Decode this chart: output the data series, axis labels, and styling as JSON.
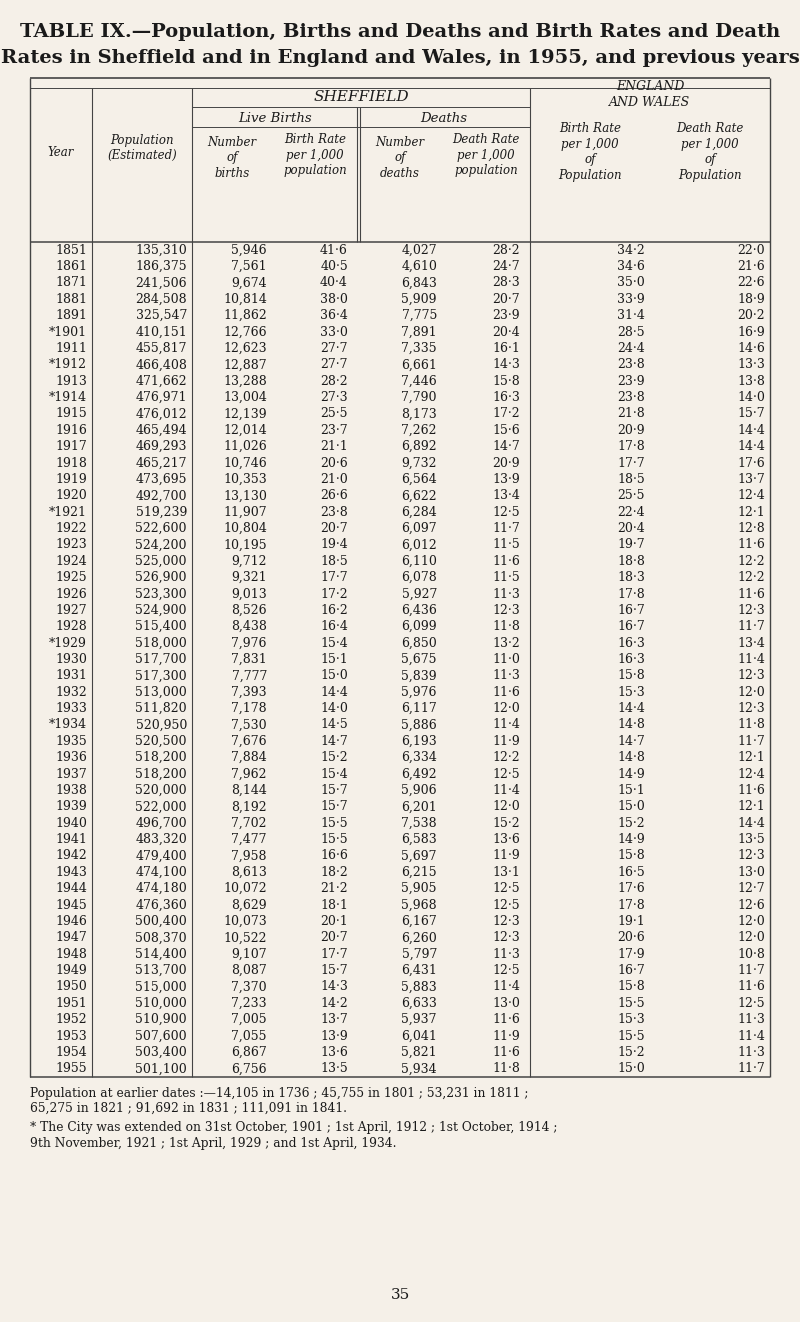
{
  "title_line1": "TABLE IX.—Population, Births and Deaths and Birth Rates and Death",
  "title_line2": "Rates in Sheffield and in England and Wales, in 1955, and previous years",
  "col_headers": {
    "sheffield_label": "SHEFFIELD",
    "ew_label": "ENGLAND\nAND WALES",
    "live_births": "Live Births",
    "deaths": "Deaths",
    "year": "Year",
    "population": "Population\n(Estimated)",
    "lb_number": "Number\nof\nbirths",
    "lb_rate": "Birth Rate\nper 1,000\npopulation",
    "d_number": "Number\nof\ndeaths",
    "d_rate": "Death Rate\nper 1,000\npopulation",
    "ew_birth_rate": "Birth Rate\nper 1,000\nof\nPopulation",
    "ew_death_rate": "Death Rate\nper 1,000\nof\nPopulation"
  },
  "rows": [
    [
      "1851",
      "135,310",
      "5,946",
      "41·6",
      "4,027",
      "28·2",
      "34·2",
      "22·0"
    ],
    [
      "1861",
      "186,375",
      "7,561",
      "40·5",
      "4,610",
      "24·7",
      "34·6",
      "21·6"
    ],
    [
      "1871",
      "241,506",
      "9,674",
      "40·4",
      "6,843",
      "28·3",
      "35·0",
      "22·6"
    ],
    [
      "1881",
      "284,508",
      "10,814",
      "38·0",
      "5,909",
      "20·7",
      "33·9",
      "18·9"
    ],
    [
      "1891",
      "325,547",
      "11,862",
      "36·4",
      "7,775",
      "23·9",
      "31·4",
      "20·2"
    ],
    [
      "*1901",
      "410,151",
      "12,766",
      "33·0",
      "7,891",
      "20·4",
      "28·5",
      "16·9"
    ],
    [
      "1911",
      "455,817",
      "12,623",
      "27·7",
      "7,335",
      "16·1",
      "24·4",
      "14·6"
    ],
    [
      "*1912",
      "466,408",
      "12,887",
      "27·7",
      "6,661",
      "14·3",
      "23·8",
      "13·3"
    ],
    [
      "1913",
      "471,662",
      "13,288",
      "28·2",
      "7,446",
      "15·8",
      "23·9",
      "13·8"
    ],
    [
      "*1914",
      "476,971",
      "13,004",
      "27·3",
      "7,790",
      "16·3",
      "23·8",
      "14·0"
    ],
    [
      "1915",
      "476,012",
      "12,139",
      "25·5",
      "8,173",
      "17·2",
      "21·8",
      "15·7"
    ],
    [
      "1916",
      "465,494",
      "12,014",
      "23·7",
      "7,262",
      "15·6",
      "20·9",
      "14·4"
    ],
    [
      "1917",
      "469,293",
      "11,026",
      "21·1",
      "6,892",
      "14·7",
      "17·8",
      "14·4"
    ],
    [
      "1918",
      "465,217",
      "10,746",
      "20·6",
      "9,732",
      "20·9",
      "17·7",
      "17·6"
    ],
    [
      "1919",
      "473,695",
      "10,353",
      "21·0",
      "6,564",
      "13·9",
      "18·5",
      "13·7"
    ],
    [
      "1920",
      "492,700",
      "13,130",
      "26·6",
      "6,622",
      "13·4",
      "25·5",
      "12·4"
    ],
    [
      "*1921",
      "519,239",
      "11,907",
      "23·8",
      "6,284",
      "12·5",
      "22·4",
      "12·1"
    ],
    [
      "1922",
      "522,600",
      "10,804",
      "20·7",
      "6,097",
      "11·7",
      "20·4",
      "12·8"
    ],
    [
      "1923",
      "524,200",
      "10,195",
      "19·4",
      "6,012",
      "11·5",
      "19·7",
      "11·6"
    ],
    [
      "1924",
      "525,000",
      "9,712",
      "18·5",
      "6,110",
      "11·6",
      "18·8",
      "12·2"
    ],
    [
      "1925",
      "526,900",
      "9,321",
      "17·7",
      "6,078",
      "11·5",
      "18·3",
      "12·2"
    ],
    [
      "1926",
      "523,300",
      "9,013",
      "17·2",
      "5,927",
      "11·3",
      "17·8",
      "11·6"
    ],
    [
      "1927",
      "524,900",
      "8,526",
      "16·2",
      "6,436",
      "12·3",
      "16·7",
      "12·3"
    ],
    [
      "1928",
      "515,400",
      "8,438",
      "16·4",
      "6,099",
      "11·8",
      "16·7",
      "11·7"
    ],
    [
      "*1929",
      "518,000",
      "7,976",
      "15·4",
      "6,850",
      "13·2",
      "16·3",
      "13·4"
    ],
    [
      "1930",
      "517,700",
      "7,831",
      "15·1",
      "5,675",
      "11·0",
      "16·3",
      "11·4"
    ],
    [
      "1931",
      "517,300",
      "7,777",
      "15·0",
      "5,839",
      "11·3",
      "15·8",
      "12·3"
    ],
    [
      "1932",
      "513,000",
      "7,393",
      "14·4",
      "5,976",
      "11·6",
      "15·3",
      "12·0"
    ],
    [
      "1933",
      "511,820",
      "7,178",
      "14·0",
      "6,117",
      "12·0",
      "14·4",
      "12·3"
    ],
    [
      "*1934",
      "520,950",
      "7,530",
      "14·5",
      "5,886",
      "11·4",
      "14·8",
      "11·8"
    ],
    [
      "1935",
      "520,500",
      "7,676",
      "14·7",
      "6,193",
      "11·9",
      "14·7",
      "11·7"
    ],
    [
      "1936",
      "518,200",
      "7,884",
      "15·2",
      "6,334",
      "12·2",
      "14·8",
      "12·1"
    ],
    [
      "1937",
      "518,200",
      "7,962",
      "15·4",
      "6,492",
      "12·5",
      "14·9",
      "12·4"
    ],
    [
      "1938",
      "520,000",
      "8,144",
      "15·7",
      "5,906",
      "11·4",
      "15·1",
      "11·6"
    ],
    [
      "1939",
      "522,000",
      "8,192",
      "15·7",
      "6,201",
      "12·0",
      "15·0",
      "12·1"
    ],
    [
      "1940",
      "496,700",
      "7,702",
      "15·5",
      "7,538",
      "15·2",
      "15·2",
      "14·4"
    ],
    [
      "1941",
      "483,320",
      "7,477",
      "15·5",
      "6,583",
      "13·6",
      "14·9",
      "13·5"
    ],
    [
      "1942",
      "479,400",
      "7,958",
      "16·6",
      "5,697",
      "11·9",
      "15·8",
      "12·3"
    ],
    [
      "1943",
      "474,100",
      "8,613",
      "18·2",
      "6,215",
      "13·1",
      "16·5",
      "13·0"
    ],
    [
      "1944",
      "474,180",
      "10,072",
      "21·2",
      "5,905",
      "12·5",
      "17·6",
      "12·7"
    ],
    [
      "1945",
      "476,360",
      "8,629",
      "18·1",
      "5,968",
      "12·5",
      "17·8",
      "12·6"
    ],
    [
      "1946",
      "500,400",
      "10,073",
      "20·1",
      "6,167",
      "12·3",
      "19·1",
      "12·0"
    ],
    [
      "1947",
      "508,370",
      "10,522",
      "20·7",
      "6,260",
      "12·3",
      "20·6",
      "12·0"
    ],
    [
      "1948",
      "514,400",
      "9,107",
      "17·7",
      "5,797",
      "11·3",
      "17·9",
      "10·8"
    ],
    [
      "1949",
      "513,700",
      "8,087",
      "15·7",
      "6,431",
      "12·5",
      "16·7",
      "11·7"
    ],
    [
      "1950",
      "515,000",
      "7,370",
      "14·3",
      "5,883",
      "11·4",
      "15·8",
      "11·6"
    ],
    [
      "1951",
      "510,000",
      "7,233",
      "14·2",
      "6,633",
      "13·0",
      "15·5",
      "12·5"
    ],
    [
      "1952",
      "510,900",
      "7,005",
      "13·7",
      "5,937",
      "11·6",
      "15·3",
      "11·3"
    ],
    [
      "1953",
      "507,600",
      "7,055",
      "13·9",
      "6,041",
      "11·9",
      "15·5",
      "11·4"
    ],
    [
      "1954",
      "503,400",
      "6,867",
      "13·6",
      "5,821",
      "11·6",
      "15·2",
      "11·3"
    ],
    [
      "1955",
      "501,100",
      "6,756",
      "13·5",
      "5,934",
      "11·8",
      "15·0",
      "11·7"
    ]
  ],
  "footnote1": "Population at earlier dates :—14,105 in 1736 ; 45,755 in 1801 ; 53,231 in 1811 ;",
  "footnote2": "65,275 in 1821 ; 91,692 in 1831 ; 111,091 in 1841.",
  "footnote3": "* The City was extended on 31st October, 1901 ; 1st April, 1912 ; 1st October, 1914 ;",
  "footnote4": "9th November, 1921 ; 1st April, 1929 ; and 1st April, 1934.",
  "page_number": "35",
  "bg_color": "#f5f0e8",
  "text_color": "#1a1a1a",
  "line_color": "#444444"
}
